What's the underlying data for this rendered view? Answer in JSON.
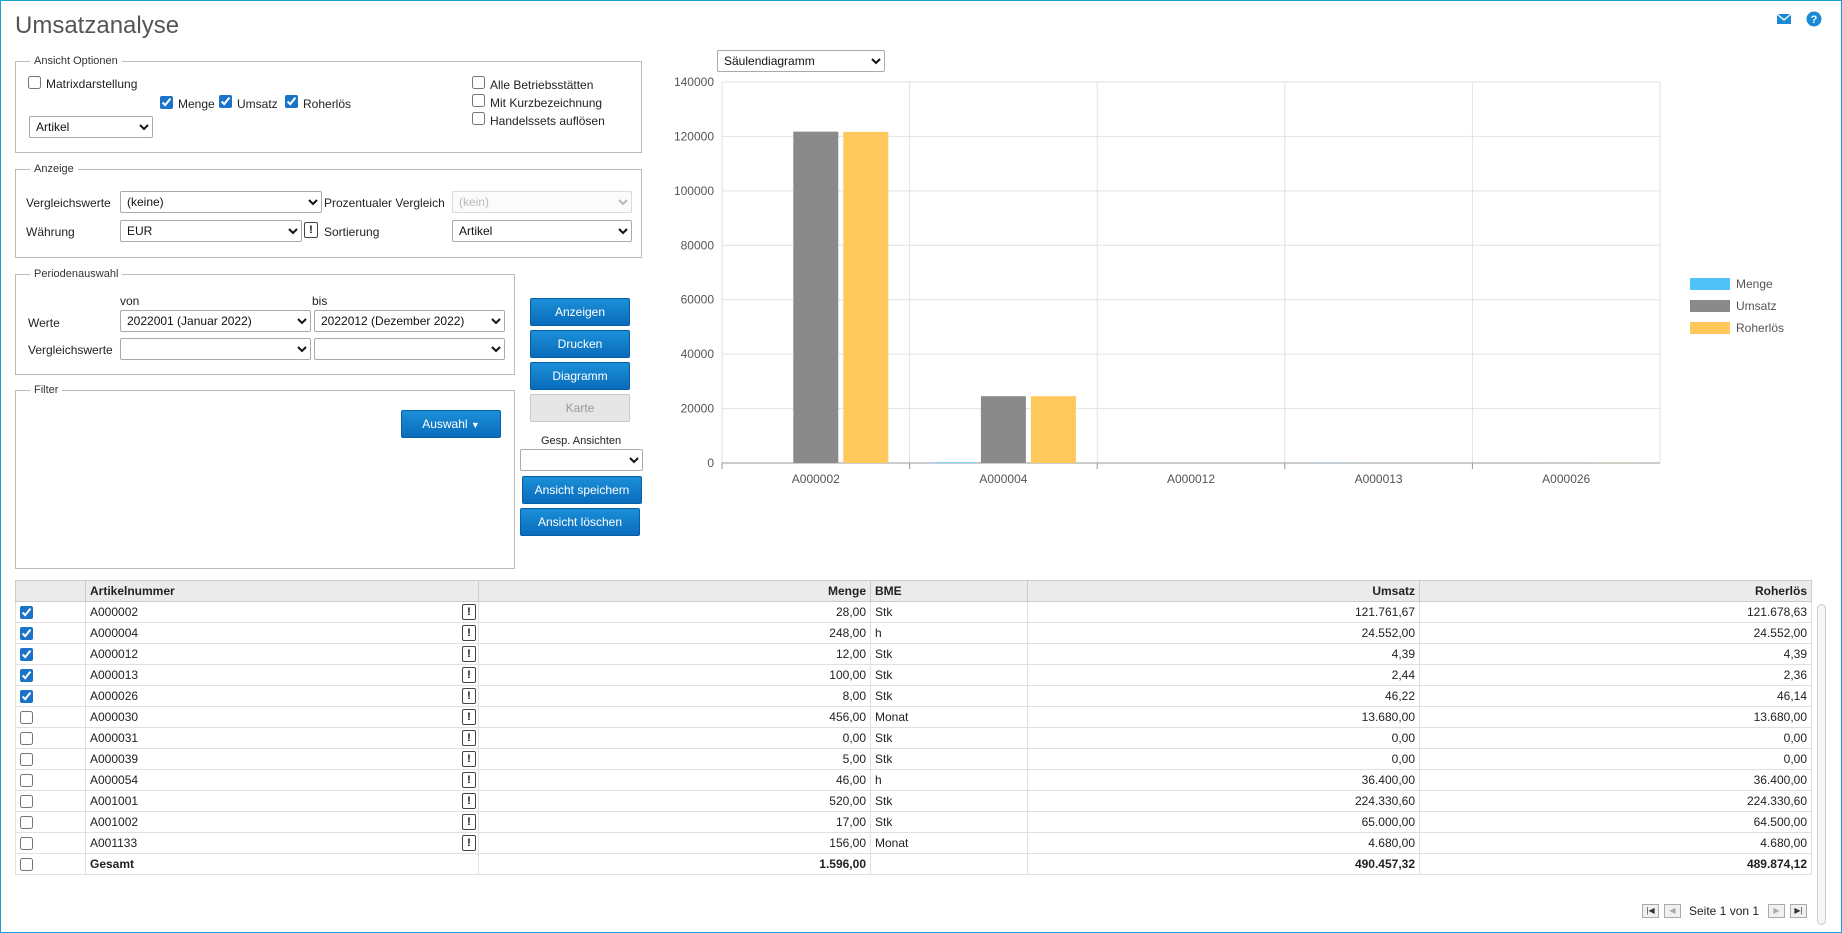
{
  "page": {
    "title": "Umsatzanalyse"
  },
  "options": {
    "legend": "Ansicht Optionen",
    "matrix": {
      "label": "Matrixdarstellung",
      "checked": false
    },
    "menge": {
      "label": "Menge",
      "checked": true
    },
    "umsatz": {
      "label": "Umsatz",
      "checked": true
    },
    "roherloes": {
      "label": "Roherlös",
      "checked": true
    },
    "alle_betriebsstaetten": {
      "label": "Alle Betriebsstätten",
      "checked": false
    },
    "kurzbezeichnung": {
      "label": "Mit Kurzbezeichnung",
      "checked": false
    },
    "handelssets": {
      "label": "Handelssets auflösen",
      "checked": false
    },
    "group_select": "Artikel"
  },
  "anzeige": {
    "legend": "Anzeige",
    "vergleichswerte_label": "Vergleichswerte",
    "vergleichswerte_value": "(keine)",
    "prozentual_label": "Prozentualer Vergleich",
    "prozentual_value": "(kein)",
    "waehrung_label": "Währung",
    "waehrung_value": "EUR",
    "sortierung_label": "Sortierung",
    "sortierung_value": "Artikel"
  },
  "periode": {
    "legend": "Periodenauswahl",
    "von_label": "von",
    "bis_label": "bis",
    "werte_label": "Werte",
    "werte_von": "2022001 (Januar 2022)",
    "werte_bis": "2022012 (Dezember 2022)",
    "vergleich_label": "Vergleichswerte",
    "vergleich_von": "",
    "vergleich_bis": ""
  },
  "filter": {
    "legend": "Filter",
    "auswahl_label": "Auswahl"
  },
  "actions": {
    "anzeigen": "Anzeigen",
    "drucken": "Drucken",
    "diagramm": "Diagramm",
    "karte": "Karte",
    "gesp_ansichten_label": "Gesp. Ansichten",
    "gesp_ansichten_value": "",
    "speichern": "Ansicht speichern",
    "loeschen": "Ansicht löschen"
  },
  "chart_type_select": "Säulendiagramm",
  "chart_data": {
    "type": "bar",
    "categories": [
      "A000002",
      "A000004",
      "A000012",
      "A000013",
      "A000026"
    ],
    "series": [
      {
        "name": "Menge",
        "color": "#4fc3f7",
        "values": [
          28,
          248,
          12,
          100,
          8
        ]
      },
      {
        "name": "Umsatz",
        "color": "#8a8a8a",
        "values": [
          121761.67,
          24552.0,
          4.39,
          2.44,
          46.22
        ]
      },
      {
        "name": "Roherlös",
        "color": "#ffc85c",
        "values": [
          121678.63,
          24552.0,
          4.39,
          2.36,
          46.14
        ]
      }
    ],
    "ylim": [
      0,
      140000
    ],
    "yticks": [
      "0",
      "20000",
      "40000",
      "60000",
      "80000",
      "100000",
      "120000",
      "140000"
    ],
    "grid": true,
    "legend_position": "right",
    "title": "",
    "xlabel": "",
    "ylabel": ""
  },
  "table": {
    "columns": {
      "artikelnummer": "Artikelnummer",
      "menge": "Menge",
      "bme": "BME",
      "umsatz": "Umsatz",
      "roherloes": "Roherlös"
    },
    "rows": [
      {
        "checked": true,
        "artikel": "A000002",
        "menge": "28,00",
        "bme": "Stk",
        "umsatz": "121.761,67",
        "roherloes": "121.678,63"
      },
      {
        "checked": true,
        "artikel": "A000004",
        "menge": "248,00",
        "bme": "h",
        "umsatz": "24.552,00",
        "roherloes": "24.552,00"
      },
      {
        "checked": true,
        "artikel": "A000012",
        "menge": "12,00",
        "bme": "Stk",
        "umsatz": "4,39",
        "roherloes": "4,39"
      },
      {
        "checked": true,
        "artikel": "A000013",
        "menge": "100,00",
        "bme": "Stk",
        "umsatz": "2,44",
        "roherloes": "2,36"
      },
      {
        "checked": true,
        "artikel": "A000026",
        "menge": "8,00",
        "bme": "Stk",
        "umsatz": "46,22",
        "roherloes": "46,14"
      },
      {
        "checked": false,
        "artikel": "A000030",
        "menge": "456,00",
        "bme": "Monat",
        "umsatz": "13.680,00",
        "roherloes": "13.680,00"
      },
      {
        "checked": false,
        "artikel": "A000031",
        "menge": "0,00",
        "bme": "Stk",
        "umsatz": "0,00",
        "roherloes": "0,00"
      },
      {
        "checked": false,
        "artikel": "A000039",
        "menge": "5,00",
        "bme": "Stk",
        "umsatz": "0,00",
        "roherloes": "0,00"
      },
      {
        "checked": false,
        "artikel": "A000054",
        "menge": "46,00",
        "bme": "h",
        "umsatz": "36.400,00",
        "roherloes": "36.400,00"
      },
      {
        "checked": false,
        "artikel": "A001001",
        "menge": "520,00",
        "bme": "Stk",
        "umsatz": "224.330,60",
        "roherloes": "224.330,60"
      },
      {
        "checked": false,
        "artikel": "A001002",
        "menge": "17,00",
        "bme": "Stk",
        "umsatz": "65.000,00",
        "roherloes": "64.500,00"
      },
      {
        "checked": false,
        "artikel": "A001133",
        "menge": "156,00",
        "bme": "Monat",
        "umsatz": "4.680,00",
        "roherloes": "4.680,00"
      }
    ],
    "total": {
      "checked": false,
      "label": "Gesamt",
      "menge": "1.596,00",
      "bme": "",
      "umsatz": "490.457,32",
      "roherloes": "489.874,12"
    }
  },
  "pager": {
    "text": "Seite 1 von 1"
  },
  "icons": {
    "mail": "mail-icon",
    "help": "help-icon"
  }
}
